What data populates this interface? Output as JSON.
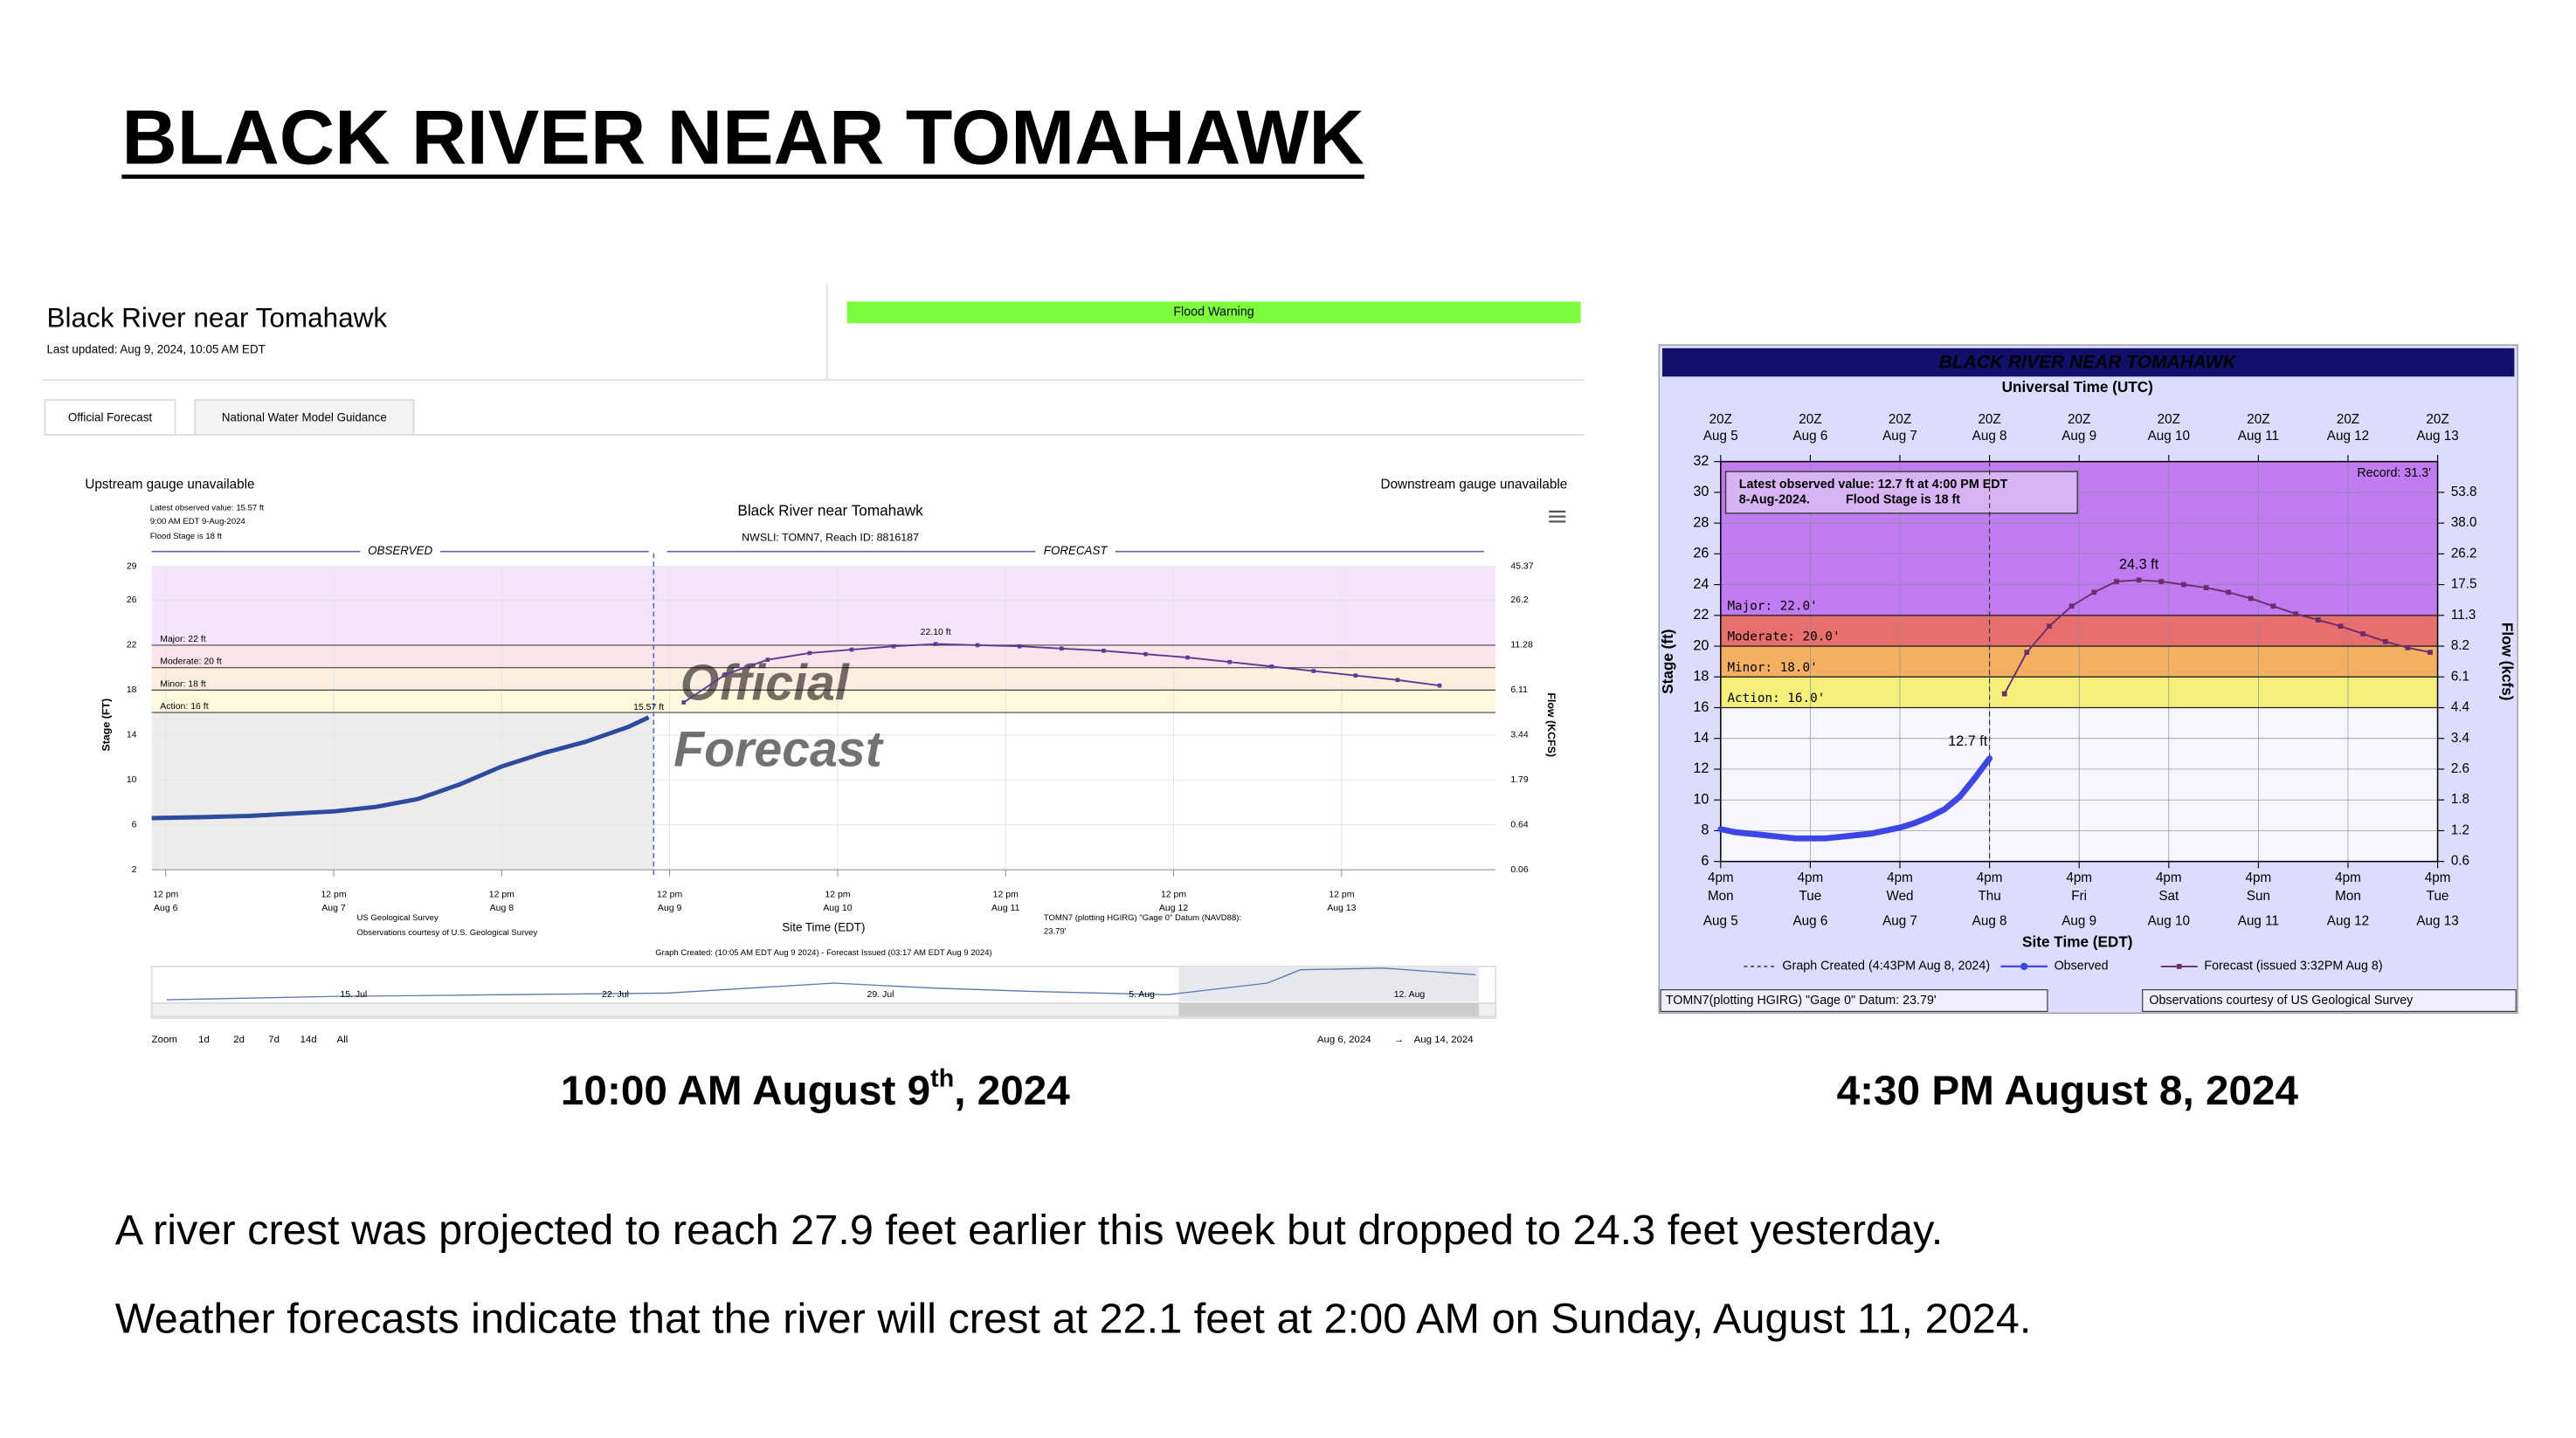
{
  "title": "BLACK RIVER NEAR TOMAHAWK",
  "captions": [
    {
      "parts": [
        "10:00 AM August 9",
        "th",
        ", 2024"
      ]
    },
    {
      "parts": [
        "4:30 PM August 8, 2024"
      ]
    }
  ],
  "paragraphs": [
    "A river crest was projected to reach 27.9 feet earlier this week but dropped to 24.3 feet yesterday.",
    "Weather forecasts indicate that the river will crest at 22.1 feet at 2:00 AM on Sunday, August 11, 2024."
  ],
  "left_panel": {
    "title": "Black River near Tomahawk",
    "last_updated": "Last updated: Aug 9, 2024, 10:05 AM EDT",
    "alert": "Flood Warning",
    "tabs": [
      "Official Forecast",
      "National Water Model Guidance"
    ],
    "upstream": "Upstream gauge unavailable",
    "downstream": "Downstream gauge unavailable",
    "navigator": {
      "labels": [
        "15. Jul",
        "22. Jul",
        "29. Jul",
        "5. Aug",
        "12. Aug"
      ],
      "zoom_label": "Zoom",
      "zoom_buttons": [
        "1d",
        "2d",
        "7d",
        "14d",
        "All"
      ],
      "range": [
        "Aug 6, 2024",
        "→",
        "Aug 14, 2024"
      ]
    }
  },
  "chart_data": [
    {
      "type": "line",
      "title": "Black River near Tomahawk",
      "subtitle": "NWSLI: TOMN7, Reach ID: 8816187",
      "latest": [
        "Latest observed value: 15.57 ft",
        "9:00 AM EDT 9-Aug-2024"
      ],
      "flood_stage_note": "Flood Stage is 18 ft",
      "ylabel": "Stage (FT)",
      "y2label": "Flow (KCFS)",
      "xlabel": "Site Time (EDT)",
      "ylim": [
        2,
        29
      ],
      "yticks": [
        2,
        6,
        10,
        14,
        18,
        22,
        26,
        29
      ],
      "y2ticks": [
        0.06,
        0.64,
        1.79,
        3.44,
        6.11,
        11.28,
        26.2,
        45.37
      ],
      "xlim": [
        "Aug 6 10:00",
        "Aug 14 10:00"
      ],
      "xticks": [
        {
          "value": "Aug 6 12:00",
          "label": [
            "12 pm",
            "Aug 6"
          ]
        },
        {
          "value": "Aug 7 12:00",
          "label": [
            "12 pm",
            "Aug 7"
          ]
        },
        {
          "value": "Aug 8 12:00",
          "label": [
            "12 pm",
            "Aug 8"
          ]
        },
        {
          "value": "Aug 9 12:00",
          "label": [
            "12 pm",
            "Aug 9"
          ]
        },
        {
          "value": "Aug 10 12:00",
          "label": [
            "12 pm",
            "Aug 10"
          ]
        },
        {
          "value": "Aug 11 12:00",
          "label": [
            "12 pm",
            "Aug 11"
          ]
        },
        {
          "value": "Aug 12 12:00",
          "label": [
            "12 pm",
            "Aug 12"
          ]
        },
        {
          "value": "Aug 13 12:00",
          "label": [
            "12 pm",
            "Aug 13"
          ]
        }
      ],
      "grid": true,
      "flood_categories": [
        {
          "label": "Major: 22 ft",
          "value": 22,
          "color": "#f3e4fb"
        },
        {
          "label": "Moderate: 20 ft",
          "value": 20,
          "color": "#fbe3ea"
        },
        {
          "label": "Minor: 18 ft",
          "value": 18,
          "color": "#fcefdf"
        },
        {
          "label": "Action: 16 ft",
          "value": 16,
          "color": "#fcf9dc"
        }
      ],
      "series": [
        {
          "name": "OBSERVED",
          "color": "#2e4a9e",
          "markers": false,
          "x": [
            "Aug 6 10:00",
            "Aug 6 18:00",
            "Aug 7 00:00",
            "Aug 7 06:00",
            "Aug 7 12:00",
            "Aug 7 18:00",
            "Aug 8 00:00",
            "Aug 8 06:00",
            "Aug 8 12:00",
            "Aug 8 18:00",
            "Aug 9 00:00",
            "Aug 9 06:00",
            "Aug 9 09:00"
          ],
          "values": [
            6.6,
            6.7,
            6.8,
            7.0,
            7.2,
            7.6,
            8.3,
            9.6,
            11.2,
            12.4,
            13.4,
            14.7,
            15.57
          ]
        },
        {
          "name": "FORECAST",
          "color": "#5a3a94",
          "markers": true,
          "x": [
            "Aug 9 14:00",
            "Aug 9 20:00",
            "Aug 10 02:00",
            "Aug 10 08:00",
            "Aug 10 14:00",
            "Aug 10 20:00",
            "Aug 11 02:00",
            "Aug 11 08:00",
            "Aug 11 14:00",
            "Aug 11 20:00",
            "Aug 12 02:00",
            "Aug 12 08:00",
            "Aug 12 14:00",
            "Aug 12 20:00",
            "Aug 13 02:00",
            "Aug 13 08:00",
            "Aug 13 14:00",
            "Aug 13 20:00",
            "Aug 14 02:00"
          ],
          "values": [
            16.9,
            19.4,
            20.7,
            21.3,
            21.6,
            21.9,
            22.1,
            22.0,
            21.9,
            21.7,
            21.5,
            21.2,
            20.9,
            20.5,
            20.1,
            19.7,
            19.3,
            18.9,
            18.4
          ]
        }
      ],
      "observed_label": "15.57 ft",
      "crest_label": "22.10 ft",
      "watermark": [
        "Official",
        "Forecast"
      ],
      "source_lines": [
        "US Geological Survey",
        "Observations courtesy of U.S. Geological Survey"
      ],
      "datum_lines": [
        "TOMN7 (plotting HGIRG) \"Gage 0\" Datum (NAVD88):",
        "23.79'"
      ],
      "graph_created": "Graph Created: (10:05 AM EDT Aug 9 2024) - Forecast Issued (03:17 AM EDT Aug 9 2024)"
    },
    {
      "type": "line",
      "title": "BLACK RIVER NEAR TOMAHAWK",
      "x2label": "Universal Time (UTC)",
      "xlabel": "Site Time (EDT)",
      "ylabel": "Stage (ft)",
      "y2label": "Flow (kcfs)",
      "latest": [
        "Latest observed value: 12.7 ft at 4:00 PM EDT",
        "8-Aug-2024.",
        "Flood Stage is 18 ft"
      ],
      "record": "Record: 31.3'",
      "ylim": [
        6,
        32
      ],
      "yticks": [
        6,
        8,
        10,
        12,
        14,
        16,
        18,
        20,
        22,
        24,
        26,
        28,
        30,
        32
      ],
      "y2ticks": [
        0.6,
        1.2,
        1.8,
        2.6,
        3.4,
        4.4,
        6.1,
        8.2,
        11.3,
        17.5,
        26.2,
        {
          "value": 38,
          "label": "38.0"
        },
        53.8
      ],
      "xlim": [
        "Aug 5 16:00",
        "Aug 13 16:00"
      ],
      "xticks": [
        {
          "value": "Aug 5 16:00",
          "label": [
            "4pm",
            "Mon",
            "Aug 5"
          ]
        },
        {
          "value": "Aug 6 16:00",
          "label": [
            "4pm",
            "Tue",
            "Aug 6"
          ]
        },
        {
          "value": "Aug 7 16:00",
          "label": [
            "4pm",
            "Wed",
            "Aug 7"
          ]
        },
        {
          "value": "Aug 8 16:00",
          "label": [
            "4pm",
            "Thu",
            "Aug 8"
          ]
        },
        {
          "value": "Aug 9 16:00",
          "label": [
            "4pm",
            "Fri",
            "Aug 9"
          ]
        },
        {
          "value": "Aug 10 16:00",
          "label": [
            "4pm",
            "Sat",
            "Aug 10"
          ]
        },
        {
          "value": "Aug 11 16:00",
          "label": [
            "4pm",
            "Sun",
            "Aug 11"
          ]
        },
        {
          "value": "Aug 12 16:00",
          "label": [
            "4pm",
            "Mon",
            "Aug 12"
          ]
        },
        {
          "value": "Aug 13 16:00",
          "label": [
            "4pm",
            "Tue",
            "Aug 13"
          ]
        }
      ],
      "x2ticks": [
        {
          "value": "Aug 5 16:00",
          "label": [
            "20Z",
            "Aug  5"
          ]
        },
        {
          "value": "Aug 6 16:00",
          "label": [
            "20Z",
            "Aug  6"
          ]
        },
        {
          "value": "Aug 7 16:00",
          "label": [
            "20Z",
            "Aug  7"
          ]
        },
        {
          "value": "Aug 8 16:00",
          "label": [
            "20Z",
            "Aug  8"
          ]
        },
        {
          "value": "Aug 9 16:00",
          "label": [
            "20Z",
            "Aug  9"
          ]
        },
        {
          "value": "Aug 10 16:00",
          "label": [
            "20Z",
            "Aug 10"
          ]
        },
        {
          "value": "Aug 11 16:00",
          "label": [
            "20Z",
            "Aug 11"
          ]
        },
        {
          "value": "Aug 12 16:00",
          "label": [
            "20Z",
            "Aug 12"
          ]
        },
        {
          "value": "Aug 13 16:00",
          "label": [
            "20Z",
            "Aug 13"
          ]
        }
      ],
      "grid": true,
      "flood_categories": [
        {
          "label": "Major: 22.0'",
          "value": 22,
          "color": "#c07cf0"
        },
        {
          "label": "Moderate: 20.0'",
          "value": 20,
          "color": "#e8706c"
        },
        {
          "label": "Minor: 18.0'",
          "value": 18,
          "color": "#f2b060"
        },
        {
          "label": "Action: 16.0'",
          "value": 16,
          "color": "#f4f07a"
        }
      ],
      "series": [
        {
          "name": "Observed",
          "color": "#3c46e6",
          "markers": false,
          "x": [
            "Aug 5 16:00",
            "Aug 5 20:00",
            "Aug 6 00:00",
            "Aug 6 04:00",
            "Aug 6 08:00",
            "Aug 6 12:00",
            "Aug 6 16:00",
            "Aug 6 20:00",
            "Aug 7 00:00",
            "Aug 7 04:00",
            "Aug 7 08:00",
            "Aug 7 12:00",
            "Aug 7 16:00",
            "Aug 7 20:00",
            "Aug 8 00:00",
            "Aug 8 04:00",
            "Aug 8 08:00",
            "Aug 8 12:00",
            "Aug 8 16:00"
          ],
          "values": [
            8.1,
            7.9,
            7.8,
            7.7,
            7.6,
            7.5,
            7.5,
            7.5,
            7.6,
            7.7,
            7.8,
            8.0,
            8.2,
            8.5,
            8.9,
            9.4,
            10.2,
            11.4,
            12.7
          ]
        },
        {
          "name": "Forecast (issued 3:32PM Aug 8)",
          "color": "#6e2c6c",
          "markers": true,
          "x": [
            "Aug 8 20:00",
            "Aug 9 02:00",
            "Aug 9 08:00",
            "Aug 9 14:00",
            "Aug 9 20:00",
            "Aug 10 02:00",
            "Aug 10 08:00",
            "Aug 10 14:00",
            "Aug 10 20:00",
            "Aug 11 02:00",
            "Aug 11 08:00",
            "Aug 11 14:00",
            "Aug 11 20:00",
            "Aug 12 02:00",
            "Aug 12 08:00",
            "Aug 12 14:00",
            "Aug 12 20:00",
            "Aug 13 02:00",
            "Aug 13 08:00",
            "Aug 13 14:00"
          ],
          "values": [
            16.9,
            19.6,
            21.3,
            22.6,
            23.5,
            24.2,
            24.3,
            24.2,
            24.0,
            23.8,
            23.5,
            23.1,
            22.6,
            22.1,
            21.7,
            21.3,
            20.8,
            20.3,
            19.9,
            19.6
          ]
        }
      ],
      "observed_label": "12.7 ft",
      "crest_label": "24.3 ft",
      "graph_created": "Graph Created (4:43PM Aug 8, 2024)",
      "footer_left": "TOMN7(plotting HGIRG) \"Gage 0\" Datum: 23.79'",
      "footer_right": "Observations courtesy of US Geological Survey"
    }
  ]
}
